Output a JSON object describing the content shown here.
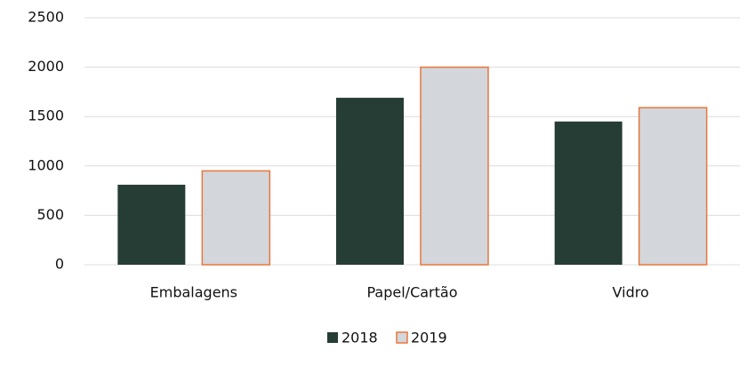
{
  "chart_data": {
    "type": "bar",
    "categories": [
      "Embalagens",
      "Papel/Cartão",
      "Vidro"
    ],
    "series": [
      {
        "name": "2018",
        "color": "#263d35",
        "values": [
          810,
          1690,
          1450
        ]
      },
      {
        "name": "2019",
        "color": "#d3d6db",
        "edge_color": "#e8773a",
        "values": [
          950,
          2000,
          1590
        ]
      }
    ],
    "ylim": [
      0,
      2500
    ],
    "yticks": [
      0,
      500,
      1000,
      1500,
      2000,
      2500
    ],
    "grid": true,
    "legend": "bottom"
  }
}
